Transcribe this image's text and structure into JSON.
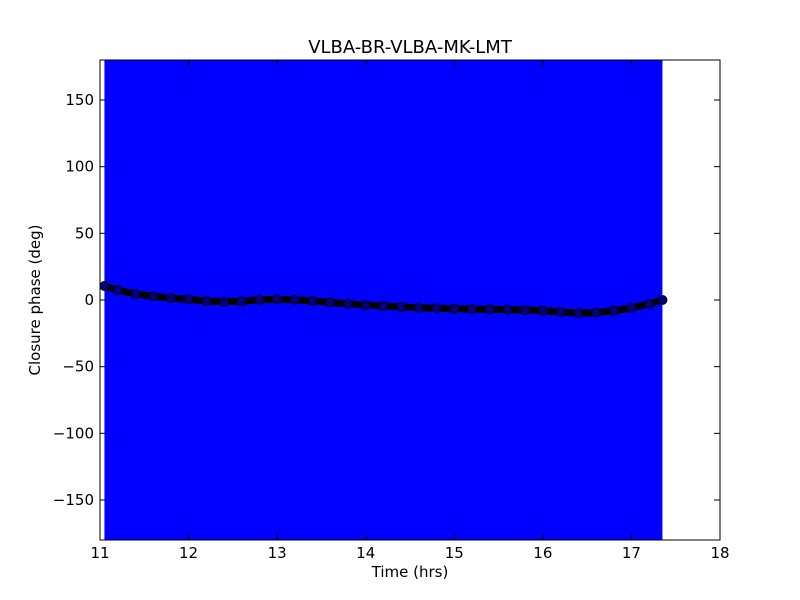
{
  "chart_data": {
    "type": "scatter",
    "title": "VLBA-BR-VLBA-MK-LMT",
    "xlabel": "Time (hrs)",
    "ylabel": "Closure phase (deg)",
    "xlim": [
      11,
      18
    ],
    "ylim": [
      -180,
      180
    ],
    "xticks": [
      11,
      12,
      13,
      14,
      15,
      16,
      17,
      18
    ],
    "xtick_labels": [
      "11",
      "12",
      "13",
      "14",
      "15",
      "16",
      "17",
      "18"
    ],
    "yticks": [
      -150,
      -100,
      -50,
      0,
      50,
      100,
      150
    ],
    "ytick_labels": [
      "−150",
      "−100",
      "−50",
      "0",
      "50",
      "100",
      "150"
    ],
    "grid": false,
    "legend": "none",
    "error_band": {
      "x_start": 11.05,
      "x_end": 17.35,
      "y_range": [
        -180,
        180
      ],
      "color": "#0000ff"
    },
    "series": [
      {
        "color": "#000000",
        "marker_color": "#000080",
        "x": [
          11.05,
          11.2,
          11.4,
          11.6,
          11.8,
          12.0,
          12.2,
          12.4,
          12.6,
          12.8,
          13.0,
          13.2,
          13.4,
          13.6,
          13.8,
          14.0,
          14.2,
          14.4,
          14.6,
          14.8,
          15.0,
          15.2,
          15.4,
          15.6,
          15.8,
          16.0,
          16.2,
          16.4,
          16.6,
          16.8,
          17.0,
          17.2,
          17.35
        ],
        "y": [
          10.5,
          7.5,
          4.5,
          2.8,
          1.5,
          0.5,
          -0.8,
          -1.2,
          -1.0,
          0.2,
          0.5,
          0.2,
          -0.8,
          -1.8,
          -2.8,
          -3.8,
          -4.5,
          -5.2,
          -5.8,
          -6.2,
          -6.5,
          -6.8,
          -7.0,
          -7.2,
          -7.5,
          -8.0,
          -9.0,
          -9.8,
          -9.5,
          -8.0,
          -6.0,
          -3.0,
          0.0
        ]
      }
    ]
  }
}
